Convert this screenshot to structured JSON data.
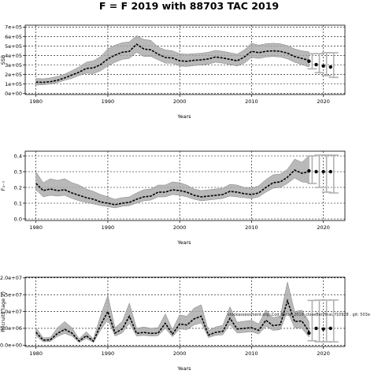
{
  "title": "F = F 2019 with 88703 TAC 2019",
  "annotation": "stockassessment.org, Cod_Faroe_2019_closeBerifinal, f10928 , git: 503e",
  "chart_data": [
    {
      "type": "line",
      "ylabel": "SSB",
      "xlabel": "Years",
      "xlim": [
        1978.5,
        2023
      ],
      "ylim": [
        -10000,
        720000
      ],
      "x_ticks": [
        1980,
        1990,
        2000,
        2010,
        2020
      ],
      "x_tick_labels": [
        "1980",
        "1990",
        "2000",
        "2010",
        "2020"
      ],
      "y_ticks": [
        0,
        100000,
        200000,
        300000,
        400000,
        500000,
        600000,
        700000
      ],
      "y_tick_labels": [
        "0e+00",
        "1e+05",
        "2e+05",
        "3e+05",
        "4e+05",
        "5e+05",
        "6e+05",
        "7e+05"
      ],
      "grid": true,
      "series": [
        {
          "x": [
            1980,
            1981,
            1982,
            1983,
            1984,
            1985,
            1986,
            1987,
            1988,
            1989,
            1990,
            1991,
            1992,
            1993,
            1994,
            1995,
            1996,
            1997,
            1998,
            1999,
            2000,
            2001,
            2002,
            2003,
            2004,
            2005,
            2006,
            2007,
            2008,
            2009,
            2010,
            2011,
            2012,
            2013,
            2014,
            2015,
            2016,
            2017,
            2018
          ],
          "y": [
            120000,
            118000,
            125000,
            140000,
            165000,
            195000,
            225000,
            265000,
            270000,
            305000,
            365000,
            405000,
            435000,
            445000,
            520000,
            470000,
            460000,
            415000,
            380000,
            375000,
            345000,
            340000,
            350000,
            355000,
            365000,
            385000,
            375000,
            360000,
            345000,
            385000,
            445000,
            430000,
            445000,
            450000,
            445000,
            425000,
            390000,
            370000,
            350000
          ],
          "lower": [
            90000,
            92000,
            100000,
            115000,
            140000,
            160000,
            190000,
            215000,
            210000,
            240000,
            290000,
            330000,
            360000,
            370000,
            435000,
            390000,
            390000,
            355000,
            320000,
            320000,
            290000,
            285000,
            295000,
            300000,
            310000,
            330000,
            320000,
            305000,
            290000,
            320000,
            380000,
            370000,
            385000,
            390000,
            385000,
            365000,
            330000,
            305000,
            280000
          ],
          "upper": [
            160000,
            155000,
            165000,
            180000,
            205000,
            240000,
            280000,
            330000,
            345000,
            390000,
            470000,
            510000,
            535000,
            545000,
            610000,
            570000,
            560000,
            490000,
            460000,
            450000,
            420000,
            415000,
            420000,
            425000,
            435000,
            455000,
            445000,
            430000,
            415000,
            460000,
            530000,
            510000,
            525000,
            530000,
            525000,
            505000,
            470000,
            450000,
            440000
          ]
        }
      ],
      "forecast": {
        "x": [
          2018,
          2019,
          2020,
          2021
        ],
        "median": [
          340000,
          305000,
          290000,
          280000
        ],
        "lower": [
          260000,
          220000,
          190000,
          170000
        ],
        "upper": [
          420000,
          420000,
          430000,
          430000
        ]
      }
    },
    {
      "type": "line",
      "ylabel": "F₃₋₇",
      "xlabel": "Years",
      "xlim": [
        1978.5,
        2023
      ],
      "ylim": [
        -0.01,
        0.43
      ],
      "x_ticks": [
        1980,
        1990,
        2000,
        2010,
        2020
      ],
      "x_tick_labels": [
        "1980",
        "1990",
        "2000",
        "2010",
        "2020"
      ],
      "y_ticks": [
        0.0,
        0.1,
        0.2,
        0.3,
        0.4
      ],
      "y_tick_labels": [
        "0.0",
        "0.1",
        "0.2",
        "0.3",
        "0.4"
      ],
      "grid": true,
      "series": [
        {
          "x": [
            1980,
            1981,
            1982,
            1983,
            1984,
            1985,
            1986,
            1987,
            1988,
            1989,
            1990,
            1991,
            1992,
            1993,
            1994,
            1995,
            1996,
            1997,
            1998,
            1999,
            2000,
            2001,
            2002,
            2003,
            2004,
            2005,
            2006,
            2007,
            2008,
            2009,
            2010,
            2011,
            2012,
            2013,
            2014,
            2015,
            2016,
            2017,
            2018
          ],
          "y": [
            0.225,
            0.18,
            0.19,
            0.18,
            0.185,
            0.165,
            0.15,
            0.135,
            0.125,
            0.108,
            0.1,
            0.09,
            0.1,
            0.105,
            0.125,
            0.14,
            0.145,
            0.17,
            0.17,
            0.185,
            0.18,
            0.17,
            0.15,
            0.14,
            0.145,
            0.15,
            0.155,
            0.175,
            0.17,
            0.16,
            0.155,
            0.165,
            0.2,
            0.23,
            0.235,
            0.265,
            0.31,
            0.29,
            0.3
          ],
          "lower": [
            0.185,
            0.14,
            0.15,
            0.145,
            0.15,
            0.13,
            0.115,
            0.105,
            0.095,
            0.085,
            0.078,
            0.07,
            0.08,
            0.085,
            0.1,
            0.115,
            0.12,
            0.14,
            0.14,
            0.155,
            0.15,
            0.14,
            0.125,
            0.115,
            0.12,
            0.125,
            0.13,
            0.145,
            0.14,
            0.135,
            0.13,
            0.14,
            0.17,
            0.195,
            0.2,
            0.225,
            0.26,
            0.235,
            0.23
          ],
          "upper": [
            0.3,
            0.23,
            0.255,
            0.245,
            0.255,
            0.23,
            0.215,
            0.19,
            0.175,
            0.155,
            0.14,
            0.125,
            0.135,
            0.14,
            0.165,
            0.185,
            0.19,
            0.215,
            0.215,
            0.235,
            0.23,
            0.215,
            0.19,
            0.18,
            0.185,
            0.19,
            0.195,
            0.22,
            0.215,
            0.2,
            0.195,
            0.21,
            0.25,
            0.28,
            0.285,
            0.315,
            0.38,
            0.36,
            0.4
          ]
        }
      ],
      "forecast": {
        "x": [
          2018,
          2019,
          2020,
          2021
        ],
        "median": [
          0.305,
          0.3,
          0.3,
          0.3
        ],
        "lower": [
          0.225,
          0.2,
          0.17,
          0.165
        ],
        "upper": [
          0.4,
          0.405,
          0.405,
          0.405
        ]
      }
    },
    {
      "type": "line",
      "ylabel": "Recruits (age 2)",
      "xlabel": "Years",
      "xlim": [
        1978.5,
        2023
      ],
      "ylim": [
        -400000,
        20200000
      ],
      "x_ticks": [
        1980,
        1990,
        2000,
        2010,
        2020
      ],
      "x_tick_labels": [
        "1980",
        "1990",
        "2000",
        "2010",
        "2020"
      ],
      "y_ticks": [
        0,
        5000000,
        10000000,
        15000000,
        20000000
      ],
      "y_tick_labels": [
        "0.0e+00",
        "5.0e+06",
        "1.0e+07",
        "1.5e+07",
        "2.0e+07"
      ],
      "grid": true,
      "series": [
        {
          "x": [
            1980,
            1981,
            1982,
            1983,
            1984,
            1985,
            1986,
            1987,
            1988,
            1989,
            1990,
            1991,
            1992,
            1993,
            1994,
            1995,
            1996,
            1997,
            1998,
            1999,
            2000,
            2001,
            2002,
            2003,
            2004,
            2005,
            2006,
            2007,
            2008,
            2009,
            2010,
            2011,
            2012,
            2013,
            2014,
            2015,
            2016,
            2017,
            2018
          ],
          "y": [
            3800000,
            1500000,
            1600000,
            3500000,
            4700000,
            3600000,
            1200000,
            2800000,
            1200000,
            6000000,
            10000000,
            3600000,
            4800000,
            8600000,
            3500000,
            3800000,
            3500000,
            3600000,
            6500000,
            3300000,
            6300000,
            6000000,
            7800000,
            8600000,
            3000000,
            3800000,
            4100000,
            8000000,
            4800000,
            5000000,
            5200000,
            4400000,
            7400000,
            5800000,
            6100000,
            13200000,
            7000000,
            7200000,
            4100000
          ],
          "lower": [
            2800000,
            1000000,
            1100000,
            2600000,
            3500000,
            2700000,
            800000,
            2000000,
            800000,
            4500000,
            7600000,
            2700000,
            3600000,
            6500000,
            2700000,
            2900000,
            2700000,
            2800000,
            5000000,
            2500000,
            4800000,
            4600000,
            6000000,
            6600000,
            2300000,
            2900000,
            3100000,
            6100000,
            3600000,
            3800000,
            4000000,
            3300000,
            5600000,
            4400000,
            4600000,
            10000000,
            5200000,
            5000000,
            2400000
          ],
          "upper": [
            5200000,
            2200000,
            2300000,
            5200000,
            7000000,
            5200000,
            1900000,
            4000000,
            1900000,
            8800000,
            14800000,
            5200000,
            7000000,
            12500000,
            5000000,
            5400000,
            5000000,
            5200000,
            9300000,
            4700000,
            9000000,
            8600000,
            11000000,
            12000000,
            4300000,
            5400000,
            5900000,
            11400000,
            6800000,
            7100000,
            7400000,
            6300000,
            10500000,
            8200000,
            8600000,
            18800000,
            10000000,
            10400000,
            7000000
          ]
        }
      ],
      "forecast": {
        "x": [
          2018,
          2019,
          2020,
          2021
        ],
        "median": [
          3600000,
          5000000,
          4800000,
          5000000
        ],
        "lower": [
          1300000,
          1000000,
          1000000,
          1000000
        ],
        "upper": [
          13300000,
          13400000,
          13400000,
          13400000
        ]
      }
    }
  ]
}
